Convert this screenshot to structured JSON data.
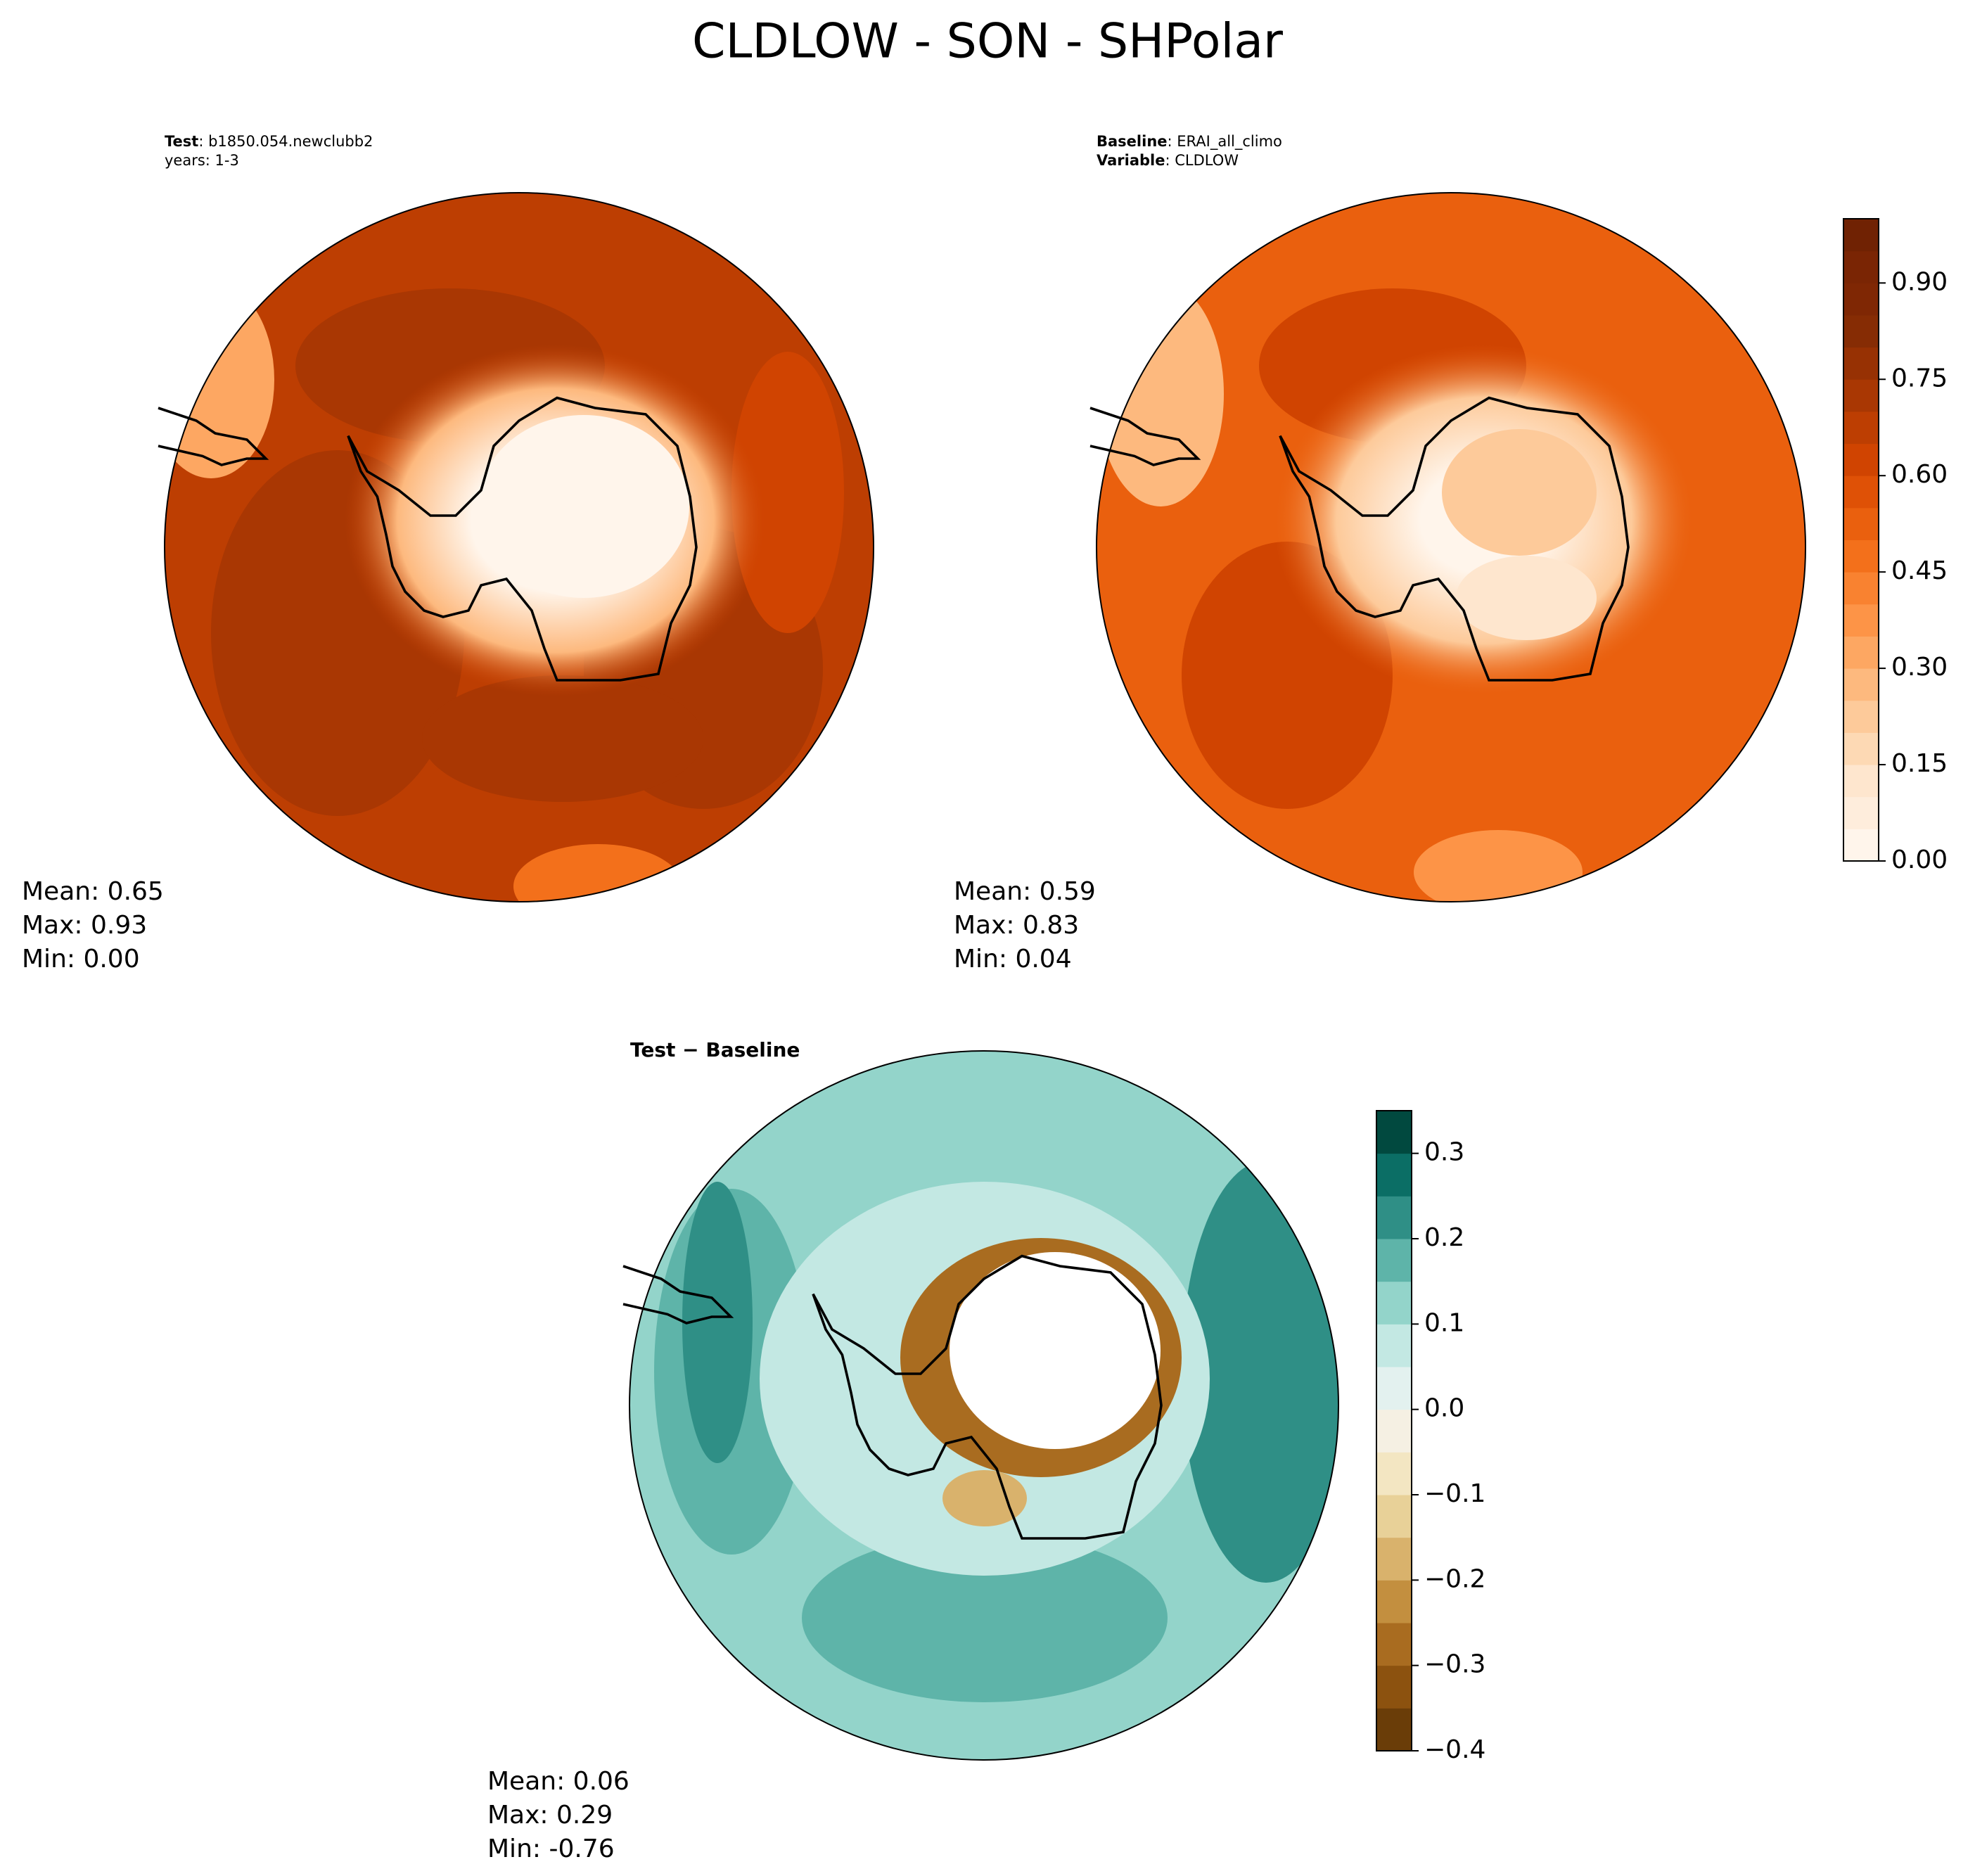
{
  "title": "CLDLOW - SON - SHPolar",
  "panels": [
    {
      "header": [
        {
          "label": "Test",
          "text": ": b1850.054.newclubb2"
        },
        {
          "text": "years: 1-3"
        }
      ],
      "stats": [
        "Mean:  0.65",
        "Max:  0.93",
        "Min:  0.00"
      ]
    },
    {
      "header": [
        {
          "label": "Baseline",
          "text": ": ERAI_all_climo"
        },
        {
          "label": "Variable",
          "text": ": CLDLOW"
        }
      ],
      "stats": [
        "Mean:  0.59",
        "Max:  0.83",
        "Min:  0.04"
      ]
    },
    {
      "header": [
        {
          "label": "Test − Baseline"
        }
      ],
      "stats": [
        "Mean:  0.06",
        "Max:  0.29",
        "Min: -0.76"
      ]
    }
  ],
  "colorbars": [
    {
      "lim": [
        0,
        1
      ],
      "ticks": [
        {
          "value": 0,
          "label": "0.00"
        },
        {
          "value": 0.15,
          "label": "0.15"
        },
        {
          "value": 0.3,
          "label": "0.30"
        },
        {
          "value": 0.45,
          "label": "0.45"
        },
        {
          "value": 0.6,
          "label": "0.60"
        },
        {
          "value": 0.75,
          "label": "0.75"
        },
        {
          "value": 0.9,
          "label": "0.90"
        }
      ],
      "colors": [
        "#fff5eb",
        "#feeddc",
        "#fee6ce",
        "#fdd9b4",
        "#fdca9a",
        "#fdb97e",
        "#fda762",
        "#fd9447",
        "#f98230",
        "#f3701b",
        "#ea600e",
        "#df5106",
        "#d04401",
        "#bd3e02",
        "#a93703",
        "#973103",
        "#862c04",
        "#7f2704",
        "#7a2504",
        "#702203"
      ]
    },
    {
      "lim": [
        -0.4,
        0.35
      ],
      "ticks": [
        {
          "value": -0.4,
          "label": "−0.4"
        },
        {
          "value": -0.3,
          "label": "−0.3"
        },
        {
          "value": -0.2,
          "label": "−0.2"
        },
        {
          "value": -0.1,
          "label": "−0.1"
        },
        {
          "value": 0,
          "label": "0.0"
        },
        0.1,
        0.2,
        0.3
      ],
      "colors": [
        "#6a3d08",
        "#8c520f",
        "#a96c20",
        "#c38f3f",
        "#d9b26c",
        "#e8d198",
        "#f3e6c2",
        "#f5f0e3",
        "#e3f1ef",
        "#c3e8e3",
        "#93d4ca",
        "#5eb4a9",
        "#2f8f86",
        "#0b6e65",
        "#01493f"
      ]
    }
  ]
}
